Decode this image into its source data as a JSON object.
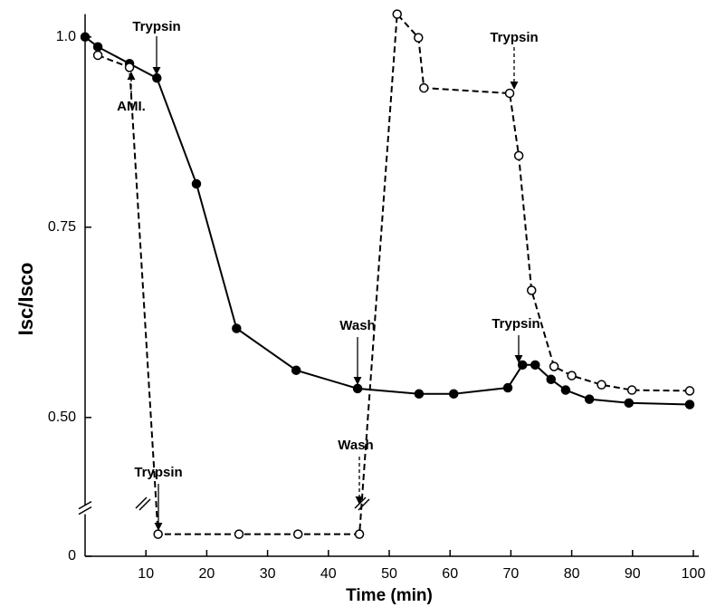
{
  "chart_data": {
    "type": "line",
    "xlabel": "Time (min)",
    "ylabel": "Isc/Isco",
    "xlim": [
      0,
      100
    ],
    "xticks": [
      10,
      20,
      30,
      40,
      50,
      60,
      70,
      80,
      90,
      100
    ],
    "ylim": [
      0,
      1.03
    ],
    "y_break": [
      0.06,
      0.38
    ],
    "yticks": [
      0,
      {
        "value": 0.5,
        "label": "0.50"
      },
      0.75,
      {
        "value": 1,
        "label": "1.0"
      }
    ],
    "series": [
      {
        "color": "#000000",
        "line": "solid",
        "marker": "filled",
        "x": [
          0,
          2.1,
          7.3,
          11.8,
          18.3,
          24.9,
          34.7,
          44.8,
          54.9,
          60.6,
          69.5,
          71.9,
          74,
          76.6,
          79,
          82.9,
          89.4,
          99.4
        ],
        "values": [
          1.0,
          0.987,
          0.965,
          0.946,
          0.807,
          0.617,
          0.562,
          0.538,
          0.531,
          0.531,
          0.539,
          0.569,
          0.569,
          0.55,
          0.536,
          0.524,
          0.519,
          0.517
        ]
      },
      {
        "color": "#000000",
        "line": "dashed",
        "marker": "open",
        "x": [
          2.1,
          7.3,
          12,
          25.3,
          35,
          45.1,
          51.3,
          54.8,
          55.7,
          69.8,
          71.3,
          73.4,
          77.1,
          80,
          84.9,
          89.9,
          99.4
        ],
        "values": [
          0.976,
          0.96,
          0.029,
          0.029,
          0.029,
          0.029,
          1.03,
          0.999,
          0.933,
          0.926,
          0.844,
          0.667,
          0.567,
          0.555,
          0.543,
          0.536,
          0.535
        ]
      }
    ],
    "annotations": [
      "Trypsin",
      "AMI.",
      "Trypsin",
      "Wash",
      "Wash",
      "Trypsin",
      "Trypsin"
    ]
  }
}
